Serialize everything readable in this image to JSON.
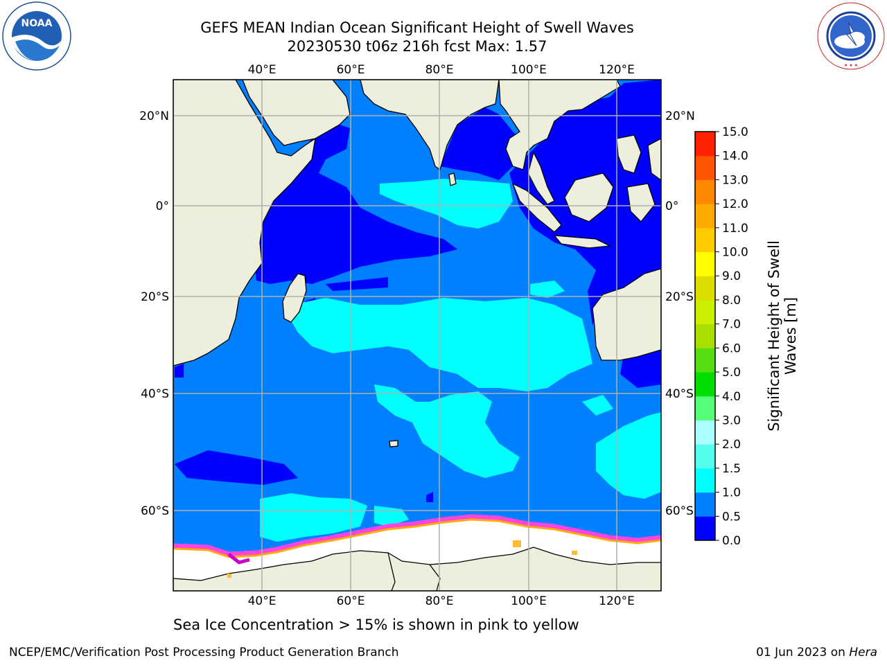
{
  "header": {
    "title_line1": "GEFS MEAN Indian Ocean Significant Height of Swell Waves",
    "title_line2": "20230530 t06z 216h fcst   Max: 1.57"
  },
  "logos": {
    "left": {
      "name": "noaa-logo",
      "text": "NOAA",
      "ring_text": "NATIONAL OCEANIC AND ATMOSPHERIC ADMINISTRATION · U.S. DEPARTMENT OF COMMERCE"
    },
    "right": {
      "name": "nws-logo",
      "ring_text": "NATIONAL WEATHER SERVICE"
    }
  },
  "map": {
    "top_lon_labels": [
      "40°E",
      "60°E",
      "80°E",
      "100°E",
      "120°E"
    ],
    "bottom_lon_labels": [
      "40°E",
      "60°E",
      "80°E",
      "100°E",
      "120°E"
    ],
    "left_lat_labels": [
      "20°N",
      "0°",
      "20°S",
      "40°S",
      "60°S"
    ],
    "right_lat_labels": [
      "20°N",
      "0°",
      "20°S",
      "40°S",
      "60°S"
    ],
    "colors": {
      "land": "#eeeedd",
      "ice": "#ffffff",
      "grid": "#b0b0b0"
    }
  },
  "colorbar": {
    "label_line1": "Significant Height of Swell",
    "label_line2": "Waves [m]",
    "ticks": [
      "0.0",
      "0.5",
      "1.0",
      "1.5",
      "2.0",
      "3.0",
      "4.0",
      "5.0",
      "6.0",
      "7.0",
      "8.0",
      "9.0",
      "10.0",
      "11.0",
      "12.0",
      "13.0",
      "14.0",
      "15.0"
    ],
    "colors": [
      "#0000ff",
      "#007fff",
      "#00ffff",
      "#55ffee",
      "#aaffff",
      "#55ff77",
      "#00dd00",
      "#55dd11",
      "#aadd00",
      "#ccee00",
      "#dddd00",
      "#ffff00",
      "#ffcc00",
      "#ffaa00",
      "#ff8800",
      "#ff5500",
      "#ff2200"
    ]
  },
  "footer": {
    "caption": "Sea Ice Concentration > 15% is shown in pink to yellow",
    "left": "NCEP/EMC/Verification Post Processing Product Generation Branch",
    "right_date": "01 Jun 2023 on ",
    "right_host": "Hera"
  }
}
